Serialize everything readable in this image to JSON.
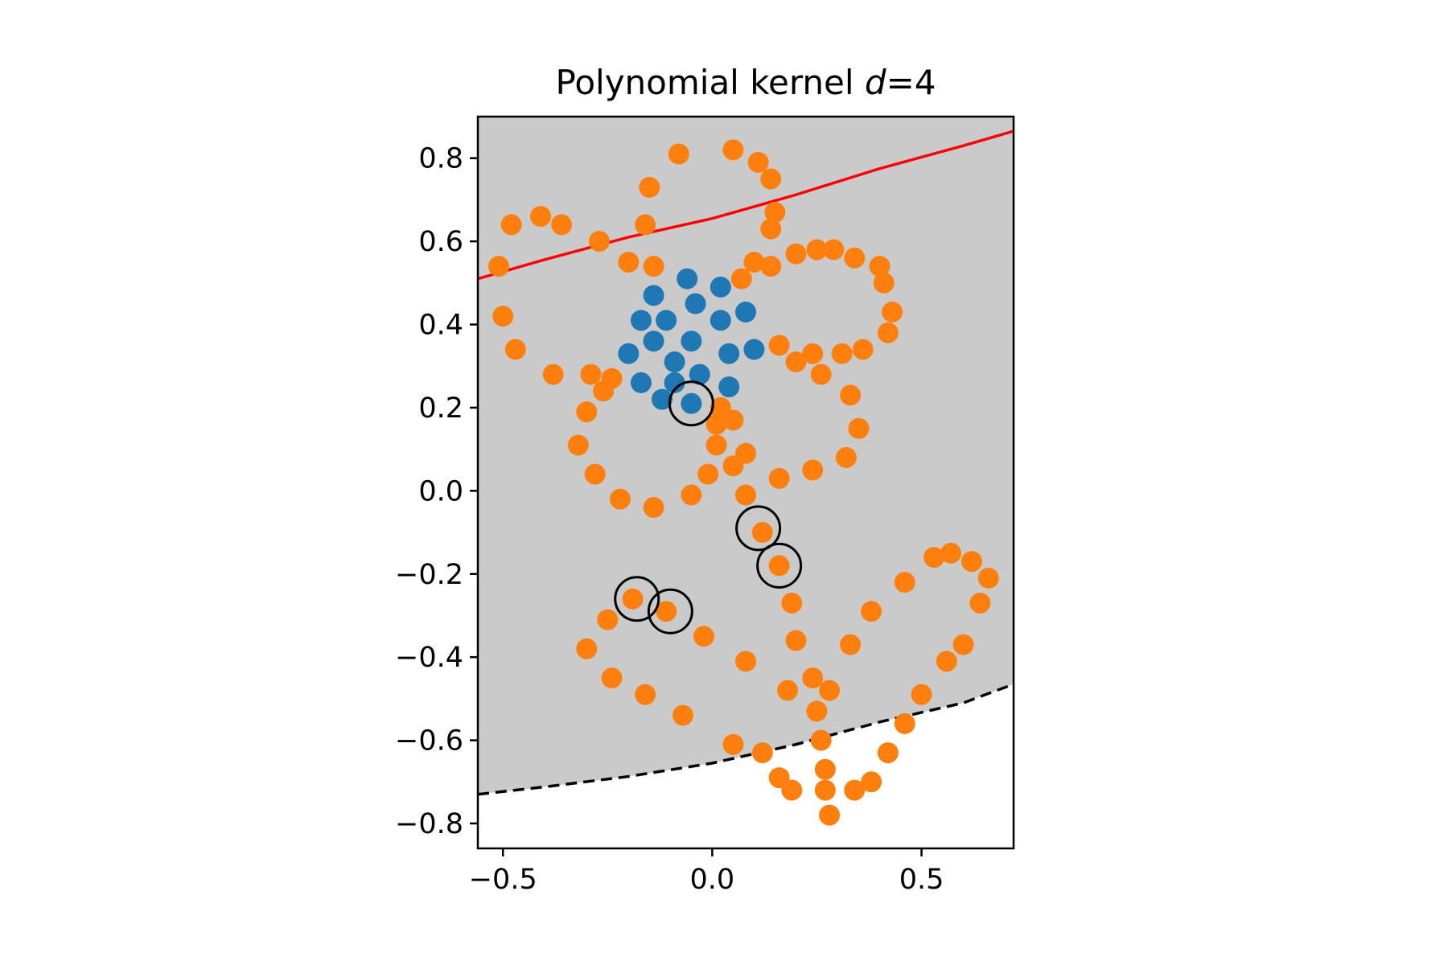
{
  "chart_data": {
    "type": "scatter",
    "title": "Polynomial kernel ",
    "title_var": "d",
    "title_rest": "=4",
    "xlabel": "",
    "ylabel": "",
    "xlim": [
      -0.56,
      0.72
    ],
    "ylim": [
      -0.86,
      0.9
    ],
    "grid": false,
    "legend": "none",
    "x_ticks": [
      -0.5,
      0.0,
      0.5
    ],
    "x_tick_labels": [
      "−0.5",
      "0.0",
      "0.5"
    ],
    "y_ticks": [
      0.8,
      0.6,
      0.4,
      0.2,
      0.0,
      -0.2,
      -0.4,
      -0.6,
      -0.8
    ],
    "y_tick_labels": [
      "0.8",
      "0.6",
      "0.4",
      "0.2",
      "0.0",
      "−0.2",
      "−0.4",
      "−0.6",
      "−0.8"
    ],
    "colors": {
      "class_a": "#1f77b4",
      "class_b": "#ff7f0e",
      "region_fill": "#cacaca",
      "upper_boundary": "#ff0000",
      "lower_boundary": "#000000",
      "support_vector_ring": "#000000"
    },
    "series": [
      {
        "role": "class_a",
        "color": "#1f77b4",
        "points": [
          [
            -0.06,
            0.51
          ],
          [
            0.02,
            0.49
          ],
          [
            -0.14,
            0.47
          ],
          [
            -0.04,
            0.45
          ],
          [
            0.08,
            0.43
          ],
          [
            -0.17,
            0.41
          ],
          [
            -0.11,
            0.41
          ],
          [
            0.02,
            0.41
          ],
          [
            -0.14,
            0.36
          ],
          [
            -0.05,
            0.36
          ],
          [
            -0.2,
            0.33
          ],
          [
            0.04,
            0.33
          ],
          [
            0.1,
            0.34
          ],
          [
            -0.09,
            0.31
          ],
          [
            -0.03,
            0.28
          ],
          [
            -0.17,
            0.26
          ],
          [
            -0.09,
            0.26
          ],
          [
            0.04,
            0.25
          ],
          [
            -0.12,
            0.22
          ],
          [
            -0.05,
            0.21
          ]
        ]
      },
      {
        "role": "class_b",
        "color": "#ff7f0e",
        "points": [
          [
            0.05,
            0.82
          ],
          [
            -0.08,
            0.81
          ],
          [
            0.11,
            0.79
          ],
          [
            0.14,
            0.75
          ],
          [
            -0.15,
            0.73
          ],
          [
            0.15,
            0.67
          ],
          [
            -0.41,
            0.66
          ],
          [
            -0.48,
            0.64
          ],
          [
            -0.36,
            0.64
          ],
          [
            -0.16,
            0.64
          ],
          [
            0.14,
            0.63
          ],
          [
            -0.27,
            0.6
          ],
          [
            0.25,
            0.58
          ],
          [
            0.29,
            0.58
          ],
          [
            0.2,
            0.57
          ],
          [
            0.34,
            0.56
          ],
          [
            0.1,
            0.55
          ],
          [
            -0.2,
            0.55
          ],
          [
            -0.14,
            0.54
          ],
          [
            -0.51,
            0.54
          ],
          [
            0.14,
            0.54
          ],
          [
            0.4,
            0.54
          ],
          [
            0.07,
            0.51
          ],
          [
            0.41,
            0.5
          ],
          [
            0.43,
            0.43
          ],
          [
            -0.5,
            0.42
          ],
          [
            0.42,
            0.38
          ],
          [
            0.16,
            0.35
          ],
          [
            -0.47,
            0.34
          ],
          [
            0.36,
            0.34
          ],
          [
            0.24,
            0.33
          ],
          [
            0.31,
            0.33
          ],
          [
            0.2,
            0.31
          ],
          [
            -0.38,
            0.28
          ],
          [
            -0.29,
            0.28
          ],
          [
            0.26,
            0.28
          ],
          [
            -0.24,
            0.27
          ],
          [
            -0.26,
            0.24
          ],
          [
            0.33,
            0.23
          ],
          [
            0.02,
            0.2
          ],
          [
            -0.3,
            0.19
          ],
          [
            0.05,
            0.17
          ],
          [
            0.01,
            0.16
          ],
          [
            0.35,
            0.15
          ],
          [
            -0.32,
            0.11
          ],
          [
            0.01,
            0.11
          ],
          [
            0.08,
            0.09
          ],
          [
            0.32,
            0.08
          ],
          [
            0.05,
            0.06
          ],
          [
            0.24,
            0.05
          ],
          [
            -0.28,
            0.04
          ],
          [
            -0.01,
            0.04
          ],
          [
            0.16,
            0.03
          ],
          [
            -0.05,
            -0.01
          ],
          [
            0.08,
            -0.01
          ],
          [
            -0.22,
            -0.02
          ],
          [
            -0.14,
            -0.04
          ],
          [
            0.12,
            -0.1
          ],
          [
            0.16,
            -0.18
          ],
          [
            0.53,
            -0.16
          ],
          [
            0.57,
            -0.15
          ],
          [
            0.62,
            -0.17
          ],
          [
            0.46,
            -0.22
          ],
          [
            0.66,
            -0.21
          ],
          [
            -0.19,
            -0.26
          ],
          [
            -0.11,
            -0.29
          ],
          [
            0.19,
            -0.27
          ],
          [
            0.64,
            -0.27
          ],
          [
            0.38,
            -0.29
          ],
          [
            -0.25,
            -0.31
          ],
          [
            -0.02,
            -0.35
          ],
          [
            0.2,
            -0.36
          ],
          [
            0.33,
            -0.37
          ],
          [
            0.6,
            -0.37
          ],
          [
            -0.3,
            -0.38
          ],
          [
            0.08,
            -0.41
          ],
          [
            0.56,
            -0.41
          ],
          [
            -0.24,
            -0.45
          ],
          [
            0.24,
            -0.45
          ],
          [
            0.28,
            -0.48
          ],
          [
            -0.16,
            -0.49
          ],
          [
            0.18,
            -0.48
          ],
          [
            0.5,
            -0.49
          ],
          [
            0.25,
            -0.53
          ],
          [
            -0.07,
            -0.54
          ],
          [
            0.46,
            -0.56
          ],
          [
            0.26,
            -0.6
          ],
          [
            0.05,
            -0.61
          ],
          [
            0.42,
            -0.63
          ],
          [
            0.12,
            -0.63
          ],
          [
            0.27,
            -0.67
          ],
          [
            0.16,
            -0.69
          ],
          [
            0.38,
            -0.7
          ],
          [
            0.19,
            -0.72
          ],
          [
            0.27,
            -0.72
          ],
          [
            0.34,
            -0.72
          ],
          [
            0.28,
            -0.78
          ]
        ]
      }
    ],
    "support_vectors": [
      [
        -0.05,
        0.21
      ],
      [
        0.11,
        -0.09
      ],
      [
        0.16,
        -0.18
      ],
      [
        -0.18,
        -0.26
      ],
      [
        -0.1,
        -0.29
      ]
    ],
    "region": {
      "fill": "#cacaca",
      "description_upper": "above plot",
      "description_lower": "dashed boundary"
    },
    "upper_boundary_curve": [
      [
        -0.56,
        0.51
      ],
      [
        -0.4,
        0.556
      ],
      [
        -0.2,
        0.61
      ],
      [
        0.0,
        0.655
      ],
      [
        0.2,
        0.712
      ],
      [
        0.4,
        0.775
      ],
      [
        0.6,
        0.83
      ],
      [
        0.72,
        0.865
      ]
    ],
    "lower_boundary_curve": [
      [
        -0.56,
        -0.73
      ],
      [
        -0.4,
        -0.712
      ],
      [
        -0.2,
        -0.687
      ],
      [
        0.0,
        -0.655
      ],
      [
        0.2,
        -0.61
      ],
      [
        0.4,
        -0.556
      ],
      [
        0.6,
        -0.51
      ],
      [
        0.72,
        -0.465
      ]
    ]
  }
}
